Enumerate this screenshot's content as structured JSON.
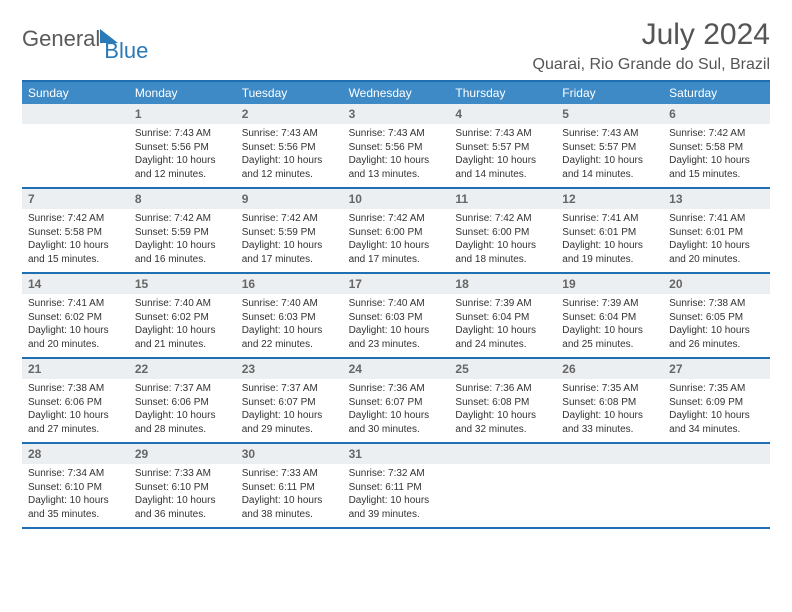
{
  "brand": {
    "text1": "General",
    "text2": "Blue"
  },
  "title": "July 2024",
  "location": "Quarai, Rio Grande do Sul, Brazil",
  "colors": {
    "header_bg": "#3d8ac7",
    "divider": "#1f6fb2",
    "daynum_bg": "#eceff1",
    "brand_gray": "#5a5a5a",
    "brand_blue": "#2a7ab8"
  },
  "weekdays": [
    "Sunday",
    "Monday",
    "Tuesday",
    "Wednesday",
    "Thursday",
    "Friday",
    "Saturday"
  ],
  "weeks": [
    [
      {
        "n": "",
        "sunrise": "",
        "sunset": "",
        "daylight": ""
      },
      {
        "n": "1",
        "sunrise": "Sunrise: 7:43 AM",
        "sunset": "Sunset: 5:56 PM",
        "daylight": "Daylight: 10 hours and 12 minutes."
      },
      {
        "n": "2",
        "sunrise": "Sunrise: 7:43 AM",
        "sunset": "Sunset: 5:56 PM",
        "daylight": "Daylight: 10 hours and 12 minutes."
      },
      {
        "n": "3",
        "sunrise": "Sunrise: 7:43 AM",
        "sunset": "Sunset: 5:56 PM",
        "daylight": "Daylight: 10 hours and 13 minutes."
      },
      {
        "n": "4",
        "sunrise": "Sunrise: 7:43 AM",
        "sunset": "Sunset: 5:57 PM",
        "daylight": "Daylight: 10 hours and 14 minutes."
      },
      {
        "n": "5",
        "sunrise": "Sunrise: 7:43 AM",
        "sunset": "Sunset: 5:57 PM",
        "daylight": "Daylight: 10 hours and 14 minutes."
      },
      {
        "n": "6",
        "sunrise": "Sunrise: 7:42 AM",
        "sunset": "Sunset: 5:58 PM",
        "daylight": "Daylight: 10 hours and 15 minutes."
      }
    ],
    [
      {
        "n": "7",
        "sunrise": "Sunrise: 7:42 AM",
        "sunset": "Sunset: 5:58 PM",
        "daylight": "Daylight: 10 hours and 15 minutes."
      },
      {
        "n": "8",
        "sunrise": "Sunrise: 7:42 AM",
        "sunset": "Sunset: 5:59 PM",
        "daylight": "Daylight: 10 hours and 16 minutes."
      },
      {
        "n": "9",
        "sunrise": "Sunrise: 7:42 AM",
        "sunset": "Sunset: 5:59 PM",
        "daylight": "Daylight: 10 hours and 17 minutes."
      },
      {
        "n": "10",
        "sunrise": "Sunrise: 7:42 AM",
        "sunset": "Sunset: 6:00 PM",
        "daylight": "Daylight: 10 hours and 17 minutes."
      },
      {
        "n": "11",
        "sunrise": "Sunrise: 7:42 AM",
        "sunset": "Sunset: 6:00 PM",
        "daylight": "Daylight: 10 hours and 18 minutes."
      },
      {
        "n": "12",
        "sunrise": "Sunrise: 7:41 AM",
        "sunset": "Sunset: 6:01 PM",
        "daylight": "Daylight: 10 hours and 19 minutes."
      },
      {
        "n": "13",
        "sunrise": "Sunrise: 7:41 AM",
        "sunset": "Sunset: 6:01 PM",
        "daylight": "Daylight: 10 hours and 20 minutes."
      }
    ],
    [
      {
        "n": "14",
        "sunrise": "Sunrise: 7:41 AM",
        "sunset": "Sunset: 6:02 PM",
        "daylight": "Daylight: 10 hours and 20 minutes."
      },
      {
        "n": "15",
        "sunrise": "Sunrise: 7:40 AM",
        "sunset": "Sunset: 6:02 PM",
        "daylight": "Daylight: 10 hours and 21 minutes."
      },
      {
        "n": "16",
        "sunrise": "Sunrise: 7:40 AM",
        "sunset": "Sunset: 6:03 PM",
        "daylight": "Daylight: 10 hours and 22 minutes."
      },
      {
        "n": "17",
        "sunrise": "Sunrise: 7:40 AM",
        "sunset": "Sunset: 6:03 PM",
        "daylight": "Daylight: 10 hours and 23 minutes."
      },
      {
        "n": "18",
        "sunrise": "Sunrise: 7:39 AM",
        "sunset": "Sunset: 6:04 PM",
        "daylight": "Daylight: 10 hours and 24 minutes."
      },
      {
        "n": "19",
        "sunrise": "Sunrise: 7:39 AM",
        "sunset": "Sunset: 6:04 PM",
        "daylight": "Daylight: 10 hours and 25 minutes."
      },
      {
        "n": "20",
        "sunrise": "Sunrise: 7:38 AM",
        "sunset": "Sunset: 6:05 PM",
        "daylight": "Daylight: 10 hours and 26 minutes."
      }
    ],
    [
      {
        "n": "21",
        "sunrise": "Sunrise: 7:38 AM",
        "sunset": "Sunset: 6:06 PM",
        "daylight": "Daylight: 10 hours and 27 minutes."
      },
      {
        "n": "22",
        "sunrise": "Sunrise: 7:37 AM",
        "sunset": "Sunset: 6:06 PM",
        "daylight": "Daylight: 10 hours and 28 minutes."
      },
      {
        "n": "23",
        "sunrise": "Sunrise: 7:37 AM",
        "sunset": "Sunset: 6:07 PM",
        "daylight": "Daylight: 10 hours and 29 minutes."
      },
      {
        "n": "24",
        "sunrise": "Sunrise: 7:36 AM",
        "sunset": "Sunset: 6:07 PM",
        "daylight": "Daylight: 10 hours and 30 minutes."
      },
      {
        "n": "25",
        "sunrise": "Sunrise: 7:36 AM",
        "sunset": "Sunset: 6:08 PM",
        "daylight": "Daylight: 10 hours and 32 minutes."
      },
      {
        "n": "26",
        "sunrise": "Sunrise: 7:35 AM",
        "sunset": "Sunset: 6:08 PM",
        "daylight": "Daylight: 10 hours and 33 minutes."
      },
      {
        "n": "27",
        "sunrise": "Sunrise: 7:35 AM",
        "sunset": "Sunset: 6:09 PM",
        "daylight": "Daylight: 10 hours and 34 minutes."
      }
    ],
    [
      {
        "n": "28",
        "sunrise": "Sunrise: 7:34 AM",
        "sunset": "Sunset: 6:10 PM",
        "daylight": "Daylight: 10 hours and 35 minutes."
      },
      {
        "n": "29",
        "sunrise": "Sunrise: 7:33 AM",
        "sunset": "Sunset: 6:10 PM",
        "daylight": "Daylight: 10 hours and 36 minutes."
      },
      {
        "n": "30",
        "sunrise": "Sunrise: 7:33 AM",
        "sunset": "Sunset: 6:11 PM",
        "daylight": "Daylight: 10 hours and 38 minutes."
      },
      {
        "n": "31",
        "sunrise": "Sunrise: 7:32 AM",
        "sunset": "Sunset: 6:11 PM",
        "daylight": "Daylight: 10 hours and 39 minutes."
      },
      {
        "n": "",
        "sunrise": "",
        "sunset": "",
        "daylight": ""
      },
      {
        "n": "",
        "sunrise": "",
        "sunset": "",
        "daylight": ""
      },
      {
        "n": "",
        "sunrise": "",
        "sunset": "",
        "daylight": ""
      }
    ]
  ]
}
